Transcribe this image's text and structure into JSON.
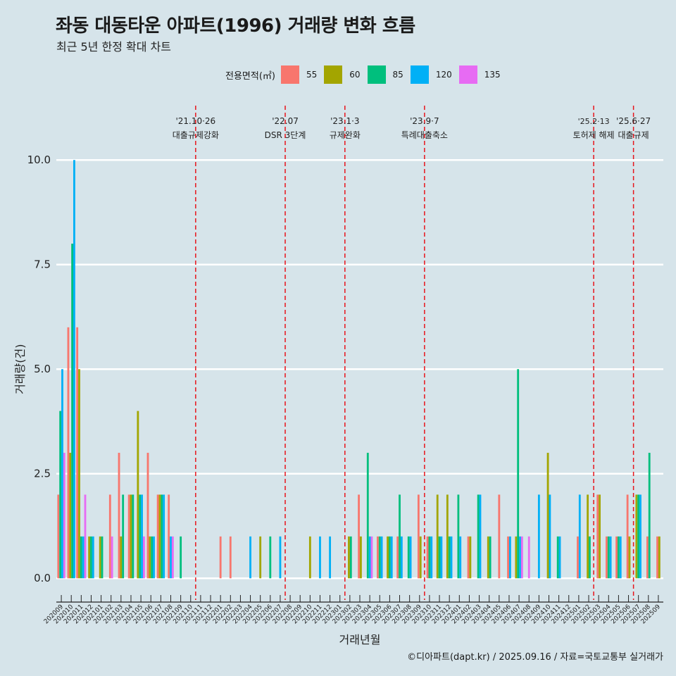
{
  "page": {
    "caption": "©디아파트(dapt.kr) / 2025.09.16 / 자료=국토교통부 실거래가"
  },
  "legend": {
    "title": "전용면적(㎡)"
  },
  "chart_data": {
    "type": "bar",
    "title": "좌동 대동타운 아파트(1996) 거래량 변화 흐름",
    "subtitle": "최근 5년 한정 확대 차트",
    "xlabel": "거래년월",
    "ylabel": "거래량(건)",
    "ylim": [
      -0.4,
      11.3
    ],
    "yticks": [
      0.0,
      2.5,
      5.0,
      7.5,
      10.0
    ],
    "ytick_labels": [
      "0.0",
      "2.5",
      "5.0",
      "7.5",
      "10.0"
    ],
    "grid": "horizontal",
    "legend_position": "top",
    "categories": [
      "202009",
      "202010",
      "202011",
      "202012",
      "202101",
      "202102",
      "202103",
      "202104",
      "202105",
      "202106",
      "202107",
      "202108",
      "202109",
      "202110",
      "202111",
      "202112",
      "202201",
      "202202",
      "202203",
      "202204",
      "202205",
      "202206",
      "202207",
      "202208",
      "202209",
      "202210",
      "202211",
      "202212",
      "202301",
      "202302",
      "202303",
      "202304",
      "202305",
      "202306",
      "202307",
      "202308",
      "202309",
      "202310",
      "202311",
      "202312",
      "202401",
      "202402",
      "202403",
      "202404",
      "202405",
      "202406",
      "202407",
      "202408",
      "202409",
      "202410",
      "202411",
      "202412",
      "202501",
      "202502",
      "202503",
      "202504",
      "202505",
      "202506",
      "202507",
      "202508",
      "202509"
    ],
    "series": [
      {
        "name": "55",
        "color": "#f8766d",
        "values": [
          2,
          6,
          6,
          0,
          0,
          2,
          3,
          2,
          0,
          3,
          2,
          2,
          0,
          0,
          0,
          0,
          1,
          1,
          0,
          0,
          0,
          0,
          0,
          0,
          0,
          0,
          0,
          0,
          0,
          0,
          2,
          0,
          1,
          0,
          1,
          0,
          2,
          1,
          0,
          0,
          0,
          1,
          0,
          0,
          2,
          1,
          0,
          0,
          0,
          0,
          0,
          0,
          1,
          0,
          2,
          1,
          1,
          2,
          0,
          1,
          1
        ]
      },
      {
        "name": "60",
        "color": "#a3a500",
        "values": [
          0,
          3,
          5,
          1,
          1,
          0,
          1,
          2,
          4,
          1,
          2,
          0,
          0,
          0,
          0,
          0,
          0,
          0,
          0,
          0,
          1,
          0,
          0,
          0,
          0,
          1,
          0,
          0,
          0,
          1,
          1,
          0,
          0,
          1,
          0,
          0,
          1,
          0,
          2,
          2,
          0,
          1,
          0,
          1,
          0,
          0,
          1,
          0,
          0,
          3,
          0,
          0,
          0,
          2,
          2,
          0,
          0,
          1,
          2,
          0,
          1
        ]
      },
      {
        "name": "85",
        "color": "#00bf7d",
        "values": [
          4,
          8,
          1,
          1,
          1,
          0,
          2,
          2,
          2,
          1,
          2,
          0,
          1,
          0,
          0,
          0,
          0,
          0,
          0,
          0,
          0,
          1,
          0,
          0,
          0,
          0,
          0,
          0,
          0,
          1,
          0,
          3,
          1,
          1,
          2,
          1,
          0,
          1,
          1,
          1,
          2,
          0,
          2,
          1,
          0,
          0,
          5,
          0,
          0,
          0,
          1,
          0,
          0,
          1,
          0,
          1,
          1,
          0,
          2,
          3,
          0
        ]
      },
      {
        "name": "120",
        "color": "#00b0f6",
        "values": [
          5,
          10,
          1,
          1,
          0,
          0,
          0,
          0,
          2,
          1,
          2,
          1,
          0,
          0,
          0,
          0,
          0,
          0,
          0,
          1,
          0,
          0,
          1,
          0,
          0,
          0,
          1,
          1,
          0,
          0,
          0,
          1,
          1,
          1,
          1,
          1,
          0,
          1,
          1,
          1,
          1,
          0,
          2,
          0,
          0,
          1,
          1,
          0,
          2,
          2,
          1,
          0,
          2,
          0,
          0,
          1,
          1,
          0,
          2,
          0,
          0
        ]
      },
      {
        "name": "135",
        "color": "#e76bf3",
        "values": [
          3,
          0,
          2,
          0,
          0,
          1,
          0,
          0,
          1,
          0,
          0,
          1,
          0,
          0,
          0,
          0,
          0,
          0,
          0,
          0,
          0,
          0,
          0,
          0,
          0,
          0,
          0,
          0,
          0,
          0,
          0,
          1,
          0,
          0,
          0,
          0,
          0,
          0,
          0,
          0,
          0,
          0,
          0,
          0,
          0,
          0,
          1,
          1,
          0,
          0,
          0,
          0,
          0,
          0,
          0,
          0,
          0,
          0,
          0,
          0,
          0
        ]
      }
    ],
    "events": [
      {
        "after_category": "202110",
        "date_label": "'21.10·26",
        "text_label": "대출규제강화"
      },
      {
        "after_category": "202207",
        "date_label": "'22.07",
        "text_label": "DSR 3단계"
      },
      {
        "after_category": "202301",
        "date_label": "'23.1·3",
        "text_label": "규제완화"
      },
      {
        "after_category": "202309",
        "date_label": "'23.9·7",
        "text_label": "특례대출축소"
      },
      {
        "after_category": "202502",
        "date_label": "'25.2·13",
        "text_label": "토허제 해제"
      },
      {
        "after_category": "202506",
        "date_label": "'25.6·27",
        "text_label": "대출규제"
      }
    ]
  }
}
